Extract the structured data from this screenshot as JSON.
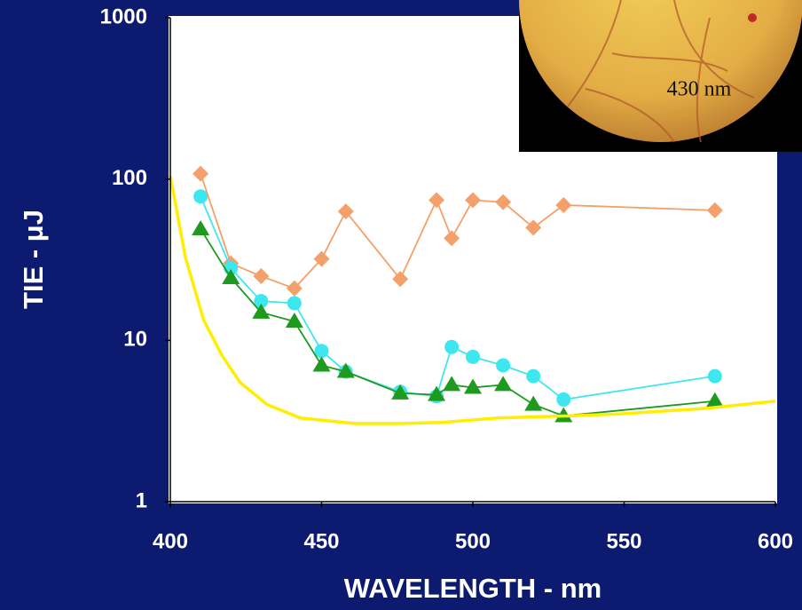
{
  "chart_data": {
    "type": "line",
    "xlabel": "WAVELENGTH - nm",
    "ylabel": "TIE - μJ",
    "inset_label": "430 nm",
    "xlim": [
      400,
      600
    ],
    "xticks": [
      400,
      450,
      500,
      550,
      600
    ],
    "ylim": [
      1,
      1000
    ],
    "yticks": [
      1,
      10,
      100,
      1000
    ],
    "ylog": true,
    "grid": false,
    "series": [
      {
        "color": "#f4a06a",
        "marker": "diamond",
        "x": [
          410,
          420,
          430,
          441,
          450,
          458,
          476,
          488,
          493,
          500,
          510,
          520,
          530,
          580
        ],
        "values": [
          108,
          30,
          25,
          21,
          32,
          63,
          24,
          74,
          43,
          74,
          72,
          50,
          69,
          64
        ]
      },
      {
        "color": "#3ee6f0",
        "marker": "circle",
        "x": [
          410,
          420,
          430,
          441,
          450,
          458,
          476,
          488,
          493,
          500,
          510,
          520,
          530,
          580
        ],
        "values": [
          78,
          28,
          17.5,
          17,
          8.6,
          6.4,
          4.8,
          4.5,
          9.1,
          7.9,
          7.0,
          6.0,
          4.3,
          6.0
        ]
      },
      {
        "color": "#1e9a1e",
        "marker": "triangle",
        "x": [
          410,
          420,
          430,
          441,
          450,
          458,
          476,
          488,
          493,
          500,
          510,
          520,
          530,
          580
        ],
        "values": [
          49,
          24.4,
          14.9,
          13.1,
          7.0,
          6.4,
          4.7,
          4.6,
          5.3,
          5.1,
          5.3,
          4.0,
          3.4,
          4.2
        ]
      },
      {
        "color": "#ffee00",
        "marker": "none",
        "x": [
          400,
          405,
          411,
          417,
          423,
          432,
          443,
          461,
          476,
          490,
          508,
          531,
          549,
          578,
          600
        ],
        "values": [
          104,
          32.6,
          13.4,
          8.1,
          5.5,
          4.0,
          3.3,
          3.05,
          3.05,
          3.1,
          3.3,
          3.4,
          3.5,
          3.8,
          4.2
        ]
      }
    ]
  }
}
